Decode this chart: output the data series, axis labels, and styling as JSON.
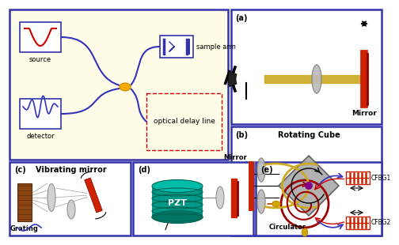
{
  "bg_color": "#fffde7",
  "border_color": "#3333aa",
  "panel_border_color": "#3333aa",
  "panels": {
    "a_label": "(a)",
    "a_sublabel": "Mirror",
    "b_label": "(b)",
    "b_sublabel1": "Rotating Cube",
    "b_sublabel2": "Mirror",
    "c_label": "(c)",
    "c_sublabel1": "Vibrating mirror",
    "c_sublabel2": "Grating",
    "d_label": "(d)",
    "d_sublabel": "PZT",
    "e_label": "(e)",
    "e_sublabel1": "CFBG1",
    "e_sublabel2": "CFBG2",
    "e_sublabel3": "Circulator"
  },
  "main_labels": {
    "source": "source",
    "detector": "detector",
    "sample_arm": "sample arm",
    "optical_delay_line": "optical delay line"
  },
  "colors": {
    "source_wave": "#cc0000",
    "detector_wave": "#3333bb",
    "fiber": "#3333bb",
    "coupler": "#ffaa00",
    "delay_box": "#cc0000",
    "teal": "#009988",
    "gold": "#ccaa22",
    "dark_blue": "#3333aa",
    "dark_red": "#cc2200",
    "purple": "#880088",
    "brown": "#8B4513",
    "gray_lens": "#aaaaaa",
    "arrow_red": "#cc0000",
    "arrow_blue": "#3333bb"
  }
}
